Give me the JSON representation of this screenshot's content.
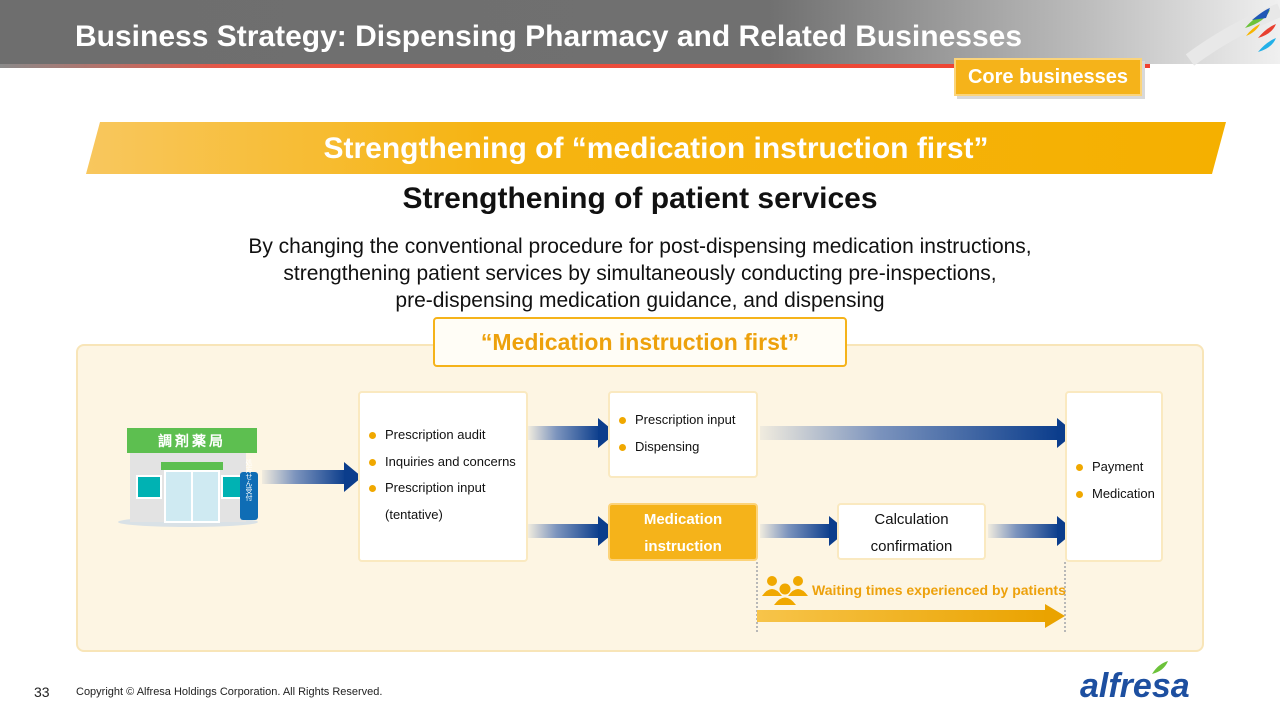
{
  "header": {
    "title": "Business Strategy: Dispensing Pharmacy and Related Businesses",
    "badge": "Core businesses"
  },
  "banner": "Strengthening of “medication instruction first”",
  "subtitle": "Strengthening of patient services",
  "description": [
    "By changing the conventional procedure for post-dispensing medication instructions,",
    "strengthening patient services by simultaneously conducting pre-inspections,",
    "pre-dispensing medication guidance, and dispensing"
  ],
  "diagram": {
    "label": "“Medication instruction first”",
    "pharmacy_sign": "調剤薬局",
    "pharmacy_stand": "処方せん受付",
    "box1": [
      "Prescription audit",
      "Inquiries and concerns",
      "Prescription input",
      "(tentative)"
    ],
    "box2": [
      "Prescription input",
      "Dispensing"
    ],
    "box3": [
      "Medication",
      "instruction"
    ],
    "box4": [
      "Calculation",
      "confirmation"
    ],
    "box5": [
      "Payment",
      "Medication"
    ],
    "waiting": "Waiting times experienced by patients"
  },
  "footer": {
    "page": "33",
    "copyright": "Copyright © Alfresa Holdings Corporation. All Rights Reserved.",
    "logo": "alfresa"
  },
  "colors": {
    "accent": "#f5b31a",
    "arrow": "#0b3d8c",
    "shop_green": "#5dbf50"
  }
}
